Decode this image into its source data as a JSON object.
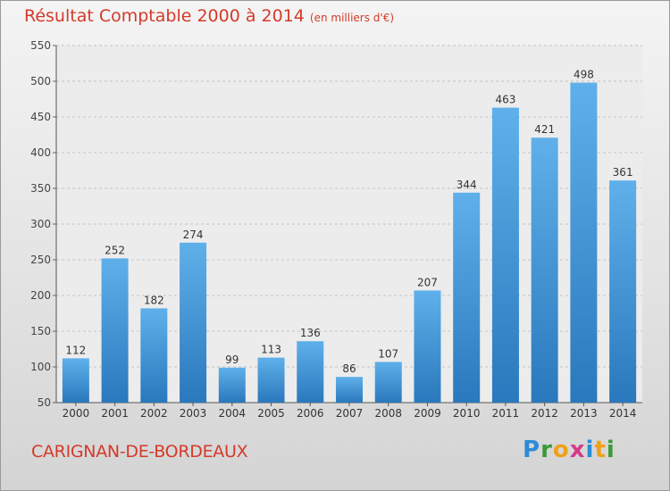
{
  "title": "Résultat Comptable 2000 à 2014",
  "subtitle": "(en milliers d'€)",
  "city": "CARIGNAN-DE-BORDEAUX",
  "logo": "Proxiti",
  "colors": {
    "bar_top": "#5fb0ea",
    "bar_bottom": "#2a78bd",
    "title": "#d43a2a"
  },
  "chart_data": {
    "type": "bar",
    "title": "Résultat Comptable 2000 à 2014",
    "subtitle": "(en milliers d'€)",
    "categories": [
      "2000",
      "2001",
      "2002",
      "2003",
      "2004",
      "2005",
      "2006",
      "2007",
      "2008",
      "2009",
      "2010",
      "2011",
      "2012",
      "2013",
      "2014"
    ],
    "values": [
      112,
      252,
      182,
      274,
      99,
      113,
      136,
      86,
      107,
      207,
      344,
      463,
      421,
      498,
      361
    ],
    "ylim": [
      50,
      550
    ],
    "yticks": [
      50,
      100,
      150,
      200,
      250,
      300,
      350,
      400,
      450,
      500,
      550
    ],
    "grid": true,
    "xlabel": "",
    "ylabel": ""
  }
}
